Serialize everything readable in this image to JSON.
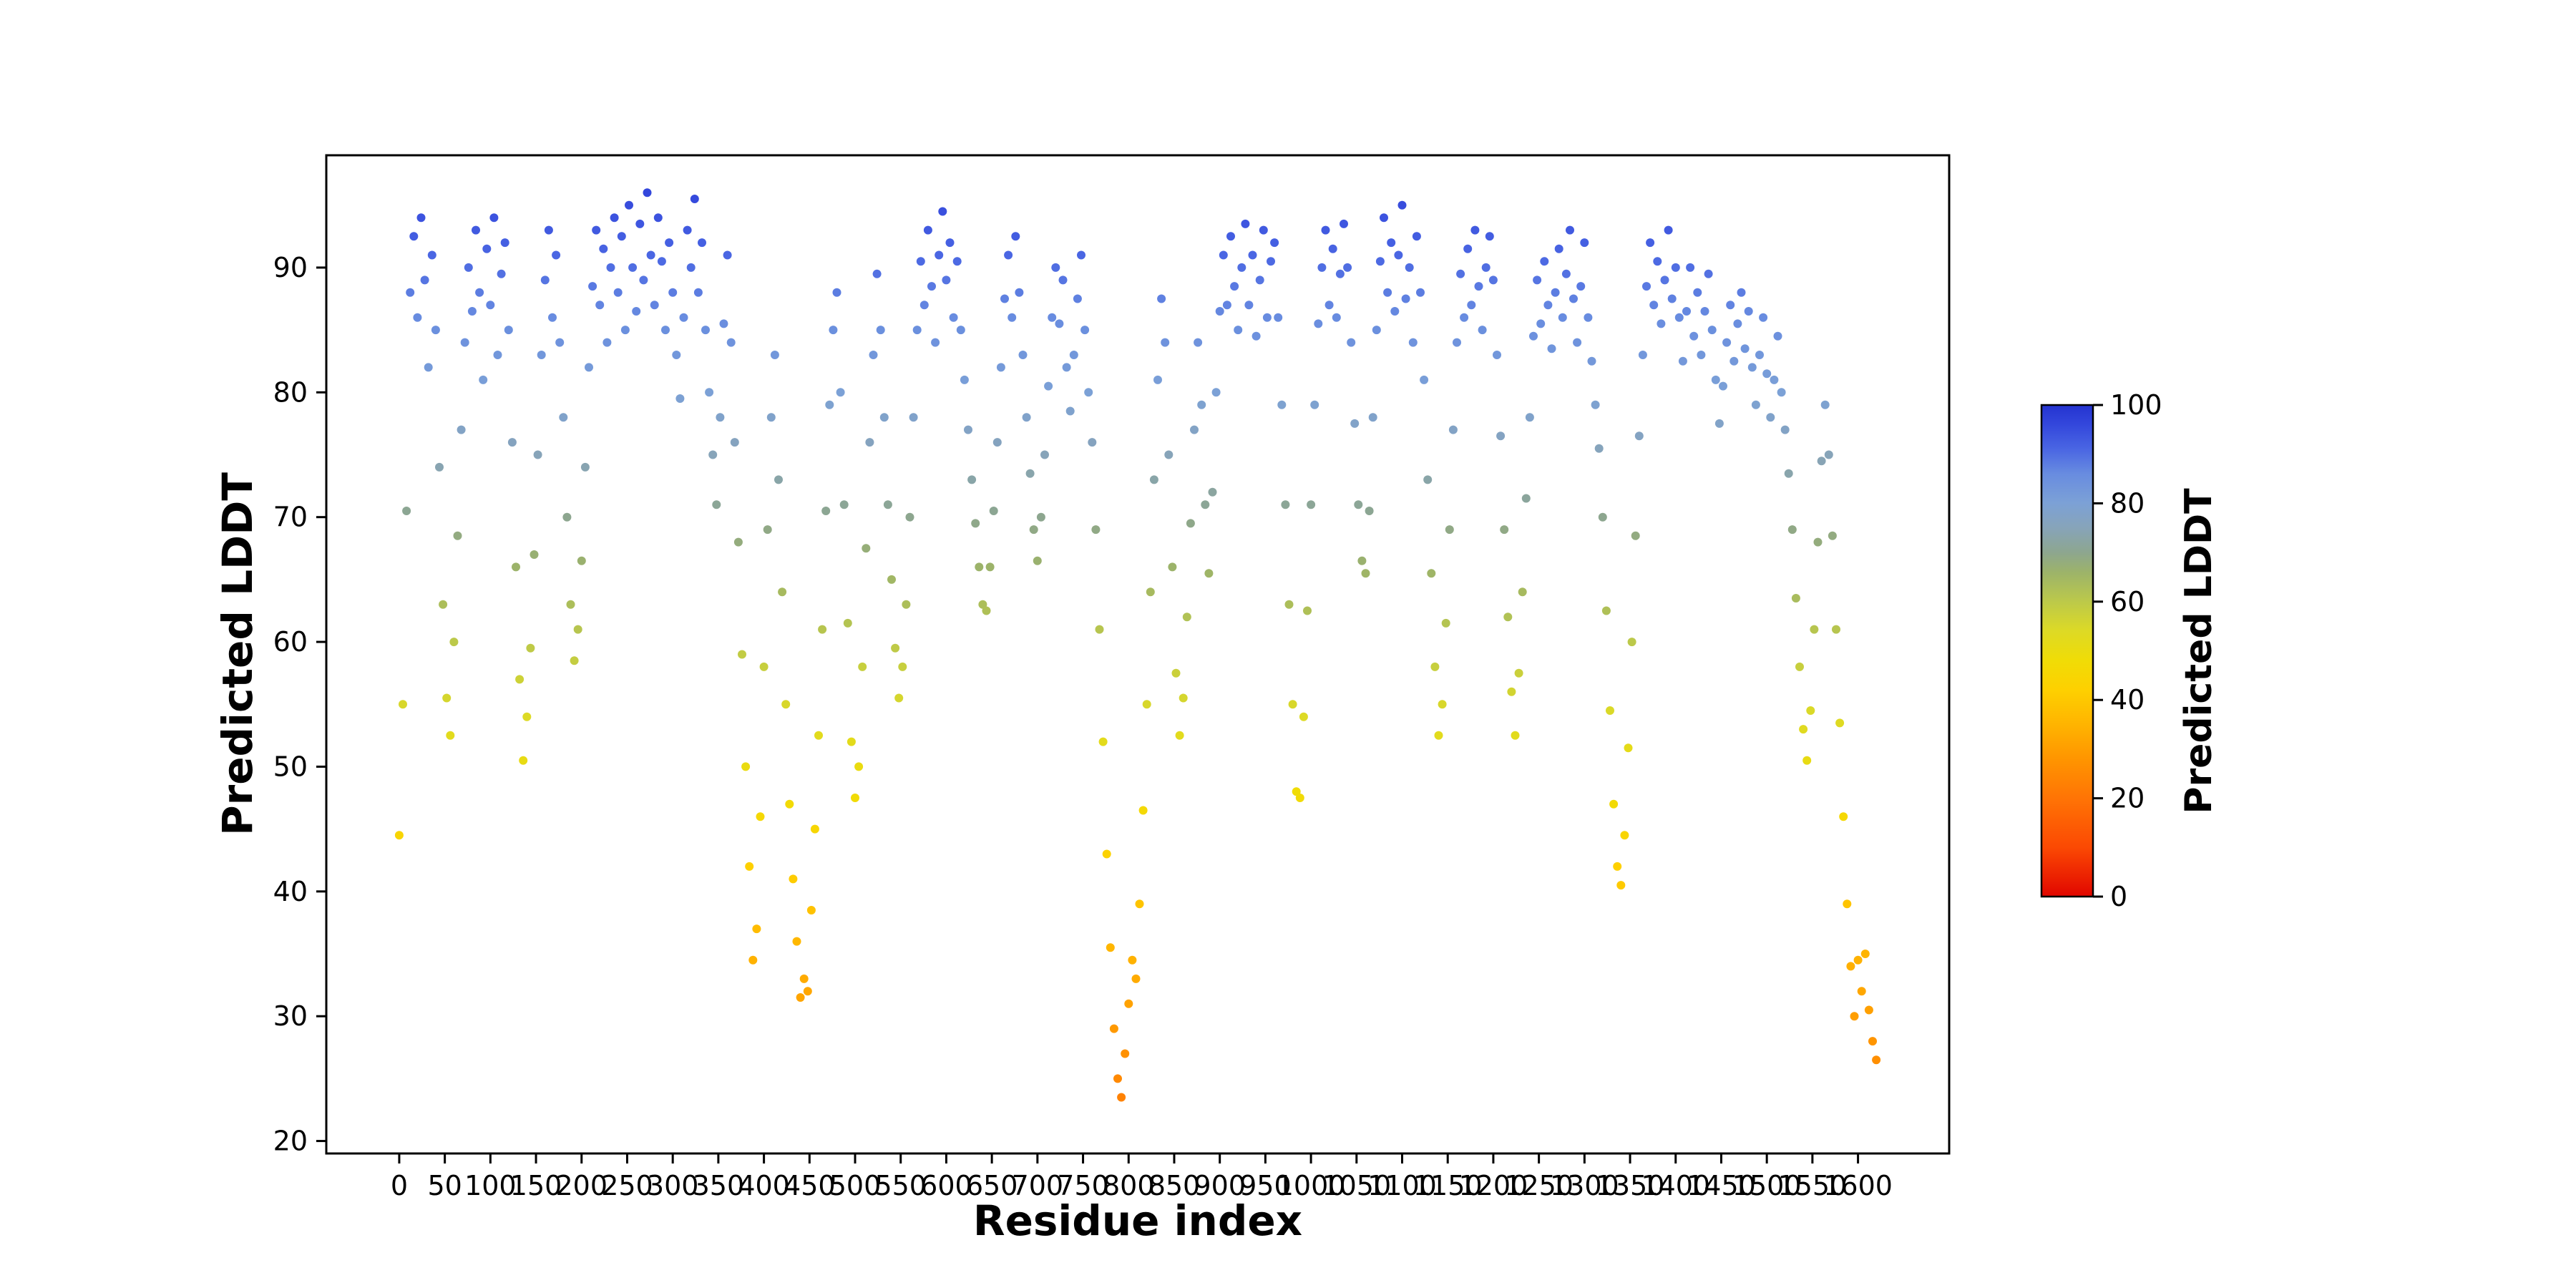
{
  "chart_data": {
    "type": "scatter",
    "title": "",
    "xlabel": "Residue index",
    "ylabel": "Predicted LDDT",
    "xlim": [
      -80,
      1700
    ],
    "ylim": [
      19,
      99
    ],
    "grid": false,
    "legend": "none",
    "xticks": [
      0,
      50,
      100,
      150,
      200,
      250,
      300,
      350,
      400,
      450,
      500,
      550,
      600,
      650,
      700,
      750,
      800,
      850,
      900,
      950,
      1000,
      1050,
      1100,
      1150,
      1200,
      1250,
      1300,
      1350,
      1400,
      1450,
      1500,
      1550,
      1600
    ],
    "yticks": [
      20,
      30,
      40,
      50,
      60,
      70,
      80,
      90
    ],
    "x_start": 0,
    "x_step": 4,
    "marker_radius_px": 6,
    "y": [
      44.5,
      55,
      70.5,
      88,
      92.5,
      86,
      94,
      89,
      82,
      91,
      85,
      74,
      63,
      55.5,
      52.5,
      60,
      68.5,
      77,
      84,
      90,
      86.5,
      93,
      88,
      81,
      91.5,
      87,
      94,
      83,
      89.5,
      92,
      85,
      76,
      66,
      57,
      50.5,
      54,
      59.5,
      67,
      75,
      83,
      89,
      93,
      86,
      91,
      84,
      78,
      70,
      63,
      58.5,
      61,
      66.5,
      74,
      82,
      88.5,
      93,
      87,
      91.5,
      84,
      90,
      94,
      88,
      92.5,
      85,
      95,
      90,
      86.5,
      93.5,
      89,
      96,
      91,
      87,
      94,
      90.5,
      85,
      92,
      88,
      83,
      79.5,
      86,
      93,
      90,
      95.5,
      88,
      92,
      85,
      80,
      75,
      71,
      78,
      85.5,
      91,
      84,
      76,
      68,
      59,
      50,
      42,
      34.5,
      37,
      46,
      58,
      69,
      78,
      83,
      73,
      64,
      55,
      47,
      41,
      36,
      31.5,
      33,
      32,
      38.5,
      45,
      52.5,
      61,
      70.5,
      79,
      85,
      88,
      80,
      71,
      61.5,
      52,
      47.5,
      50,
      58,
      67.5,
      76,
      83,
      89.5,
      85,
      78,
      71,
      65,
      59.5,
      55.5,
      58,
      63,
      70,
      78,
      85,
      90.5,
      87,
      93,
      88.5,
      84,
      91,
      94.5,
      89,
      92,
      86,
      90.5,
      85,
      81,
      77,
      73,
      69.5,
      66,
      63,
      62.5,
      66,
      70.5,
      76,
      82,
      87.5,
      91,
      86,
      92.5,
      88,
      83,
      78,
      73.5,
      69,
      66.5,
      70,
      75,
      80.5,
      86,
      90,
      85.5,
      89,
      82,
      78.5,
      83,
      87.5,
      91,
      85,
      80,
      76,
      69,
      61,
      52,
      43,
      35.5,
      29,
      25,
      23.5,
      27,
      31,
      34.5,
      33,
      39,
      46.5,
      55,
      64,
      73,
      81,
      87.5,
      84,
      75,
      66,
      57.5,
      52.5,
      55.5,
      62,
      69.5,
      77,
      84,
      79,
      71,
      65.5,
      72,
      80,
      86.5,
      91,
      87,
      92.5,
      88.5,
      85,
      90,
      93.5,
      87,
      91,
      84.5,
      89,
      93,
      86,
      90.5,
      92,
      86,
      79,
      71,
      63,
      55,
      48,
      47.5,
      54,
      62.5,
      71,
      79,
      85.5,
      90,
      93,
      87,
      91.5,
      86,
      89.5,
      93.5,
      90,
      84,
      77.5,
      71,
      66.5,
      65.5,
      70.5,
      78,
      85,
      90.5,
      94,
      88,
      92,
      86.5,
      91,
      95,
      87.5,
      90,
      84,
      92.5,
      88,
      81,
      73,
      65.5,
      58,
      52.5,
      55,
      61.5,
      69,
      77,
      84,
      89.5,
      86,
      91.5,
      87,
      93,
      88.5,
      85,
      90,
      92.5,
      89,
      83,
      76.5,
      69,
      62,
      56,
      52.5,
      57.5,
      64,
      71.5,
      78,
      84.5,
      89,
      85.5,
      90.5,
      87,
      83.5,
      88,
      91.5,
      86,
      89.5,
      93,
      87.5,
      84,
      88.5,
      92,
      86,
      82.5,
      79,
      75.5,
      70,
      62.5,
      54.5,
      47,
      42,
      40.5,
      44.5,
      51.5,
      60,
      68.5,
      76.5,
      83,
      88.5,
      92,
      87,
      90.5,
      85.5,
      89,
      93,
      87.5,
      90,
      86,
      82.5,
      86.5,
      90,
      84.5,
      88,
      83,
      86.5,
      89.5,
      85,
      81,
      77.5,
      80.5,
      84,
      87,
      82.5,
      85.5,
      88,
      83.5,
      86.5,
      82,
      79,
      83,
      86,
      81.5,
      78,
      81,
      84.5,
      80,
      77,
      73.5,
      69,
      63.5,
      58,
      53,
      50.5,
      54.5,
      61,
      68,
      74.5,
      79,
      75,
      68.5,
      61,
      53.5,
      46,
      39,
      34,
      30,
      34.5,
      32,
      35,
      30.5,
      28,
      26.5
    ],
    "colorbar": {
      "label": "Predicted LDDT",
      "ticks": [
        0,
        20,
        40,
        60,
        80,
        100
      ],
      "range": [
        0,
        100
      ]
    },
    "colormap_stops": [
      [
        0.0,
        "#e10600"
      ],
      [
        0.1,
        "#fb4903"
      ],
      [
        0.2,
        "#ff7405"
      ],
      [
        0.28,
        "#ff9500"
      ],
      [
        0.35,
        "#ffb400"
      ],
      [
        0.42,
        "#fed000"
      ],
      [
        0.48,
        "#f0dc06"
      ],
      [
        0.54,
        "#ddda25"
      ],
      [
        0.6,
        "#bcc94a"
      ],
      [
        0.66,
        "#9cb36a"
      ],
      [
        0.7,
        "#8da68f"
      ],
      [
        0.75,
        "#87a4b9"
      ],
      [
        0.8,
        "#7ca1d6"
      ],
      [
        0.86,
        "#688ce0"
      ],
      [
        0.91,
        "#4a66e3"
      ],
      [
        0.96,
        "#3347dc"
      ],
      [
        1.0,
        "#2433d0"
      ]
    ]
  }
}
